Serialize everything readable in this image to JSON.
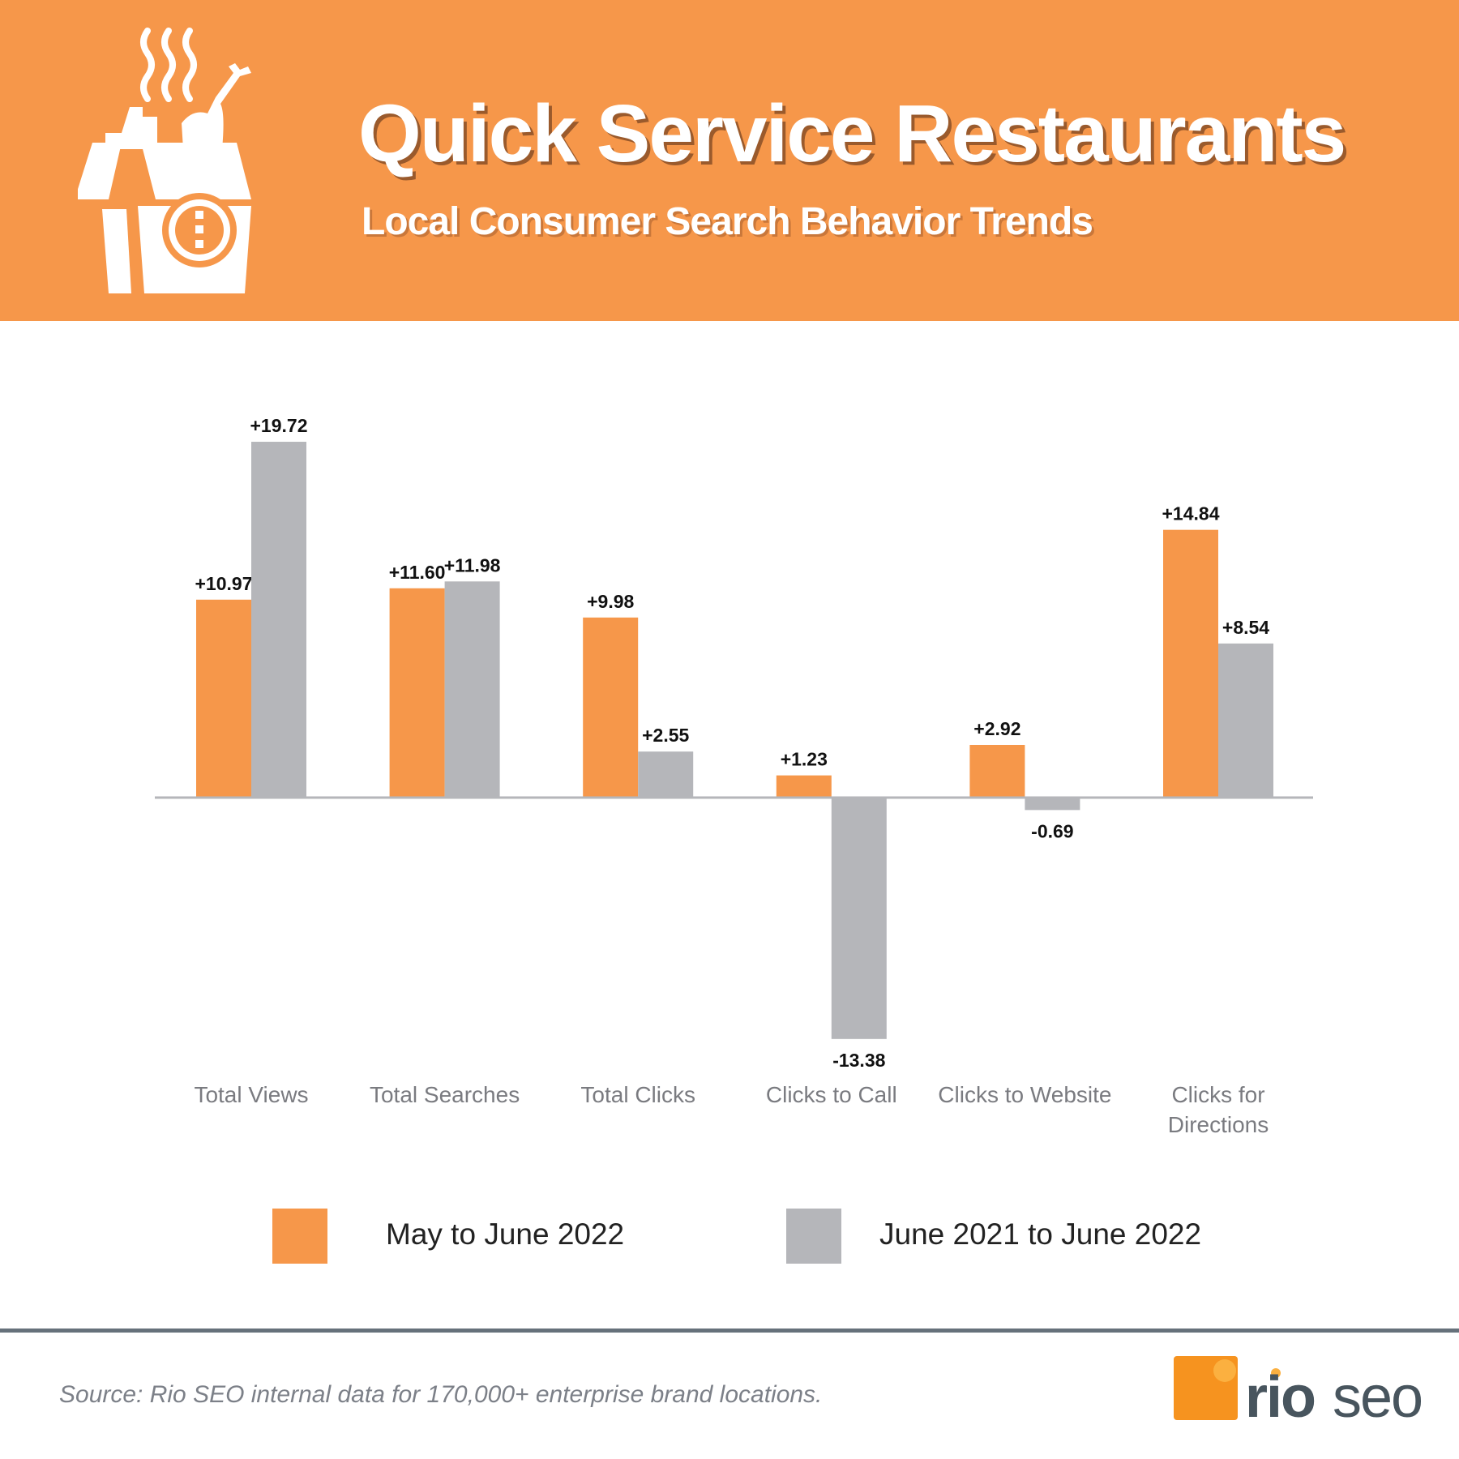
{
  "header": {
    "title": "Quick Service Restaurants",
    "subtitle": "Local Consumer Search Behavior Trends",
    "icon": "takeout-box-icon",
    "background_color": "#f6974a"
  },
  "chart_data": {
    "type": "bar",
    "categories": [
      "Total Views",
      "Total Searches",
      "Total Clicks",
      "Clicks to Call",
      "Clicks to Website",
      "Clicks for Directions"
    ],
    "series": [
      {
        "name": "May to June 2022",
        "color": "#f6974a",
        "values": [
          10.97,
          11.6,
          9.98,
          1.23,
          2.92,
          14.84
        ],
        "labels": [
          "+10.97",
          "+11.60",
          "+9.98",
          "+1.23",
          "+2.92",
          "+14.84"
        ]
      },
      {
        "name": "June 2021 to June 2022",
        "color": "#b5b6ba",
        "values": [
          19.72,
          11.98,
          2.55,
          -13.38,
          -0.69,
          8.54
        ],
        "labels": [
          "+19.72",
          "+11.98",
          "+2.55",
          "-13.38",
          "-0.69",
          "+8.54"
        ]
      }
    ],
    "ylim": [
      -13.38,
      19.72
    ],
    "grid": false,
    "legend": "bottom"
  },
  "footer": {
    "source": "Source: Rio SEO internal data for 170,000+ enterprise brand locations.",
    "logo_text": "rio seo"
  }
}
